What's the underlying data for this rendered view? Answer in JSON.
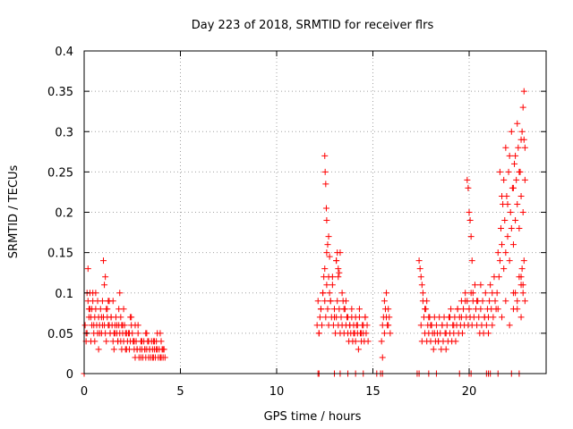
{
  "chart_data": {
    "type": "scatter",
    "title": "Day 223 of 2018, SRMTID for receiver flrs",
    "xlabel": "GPS time / hours",
    "ylabel": "SRMTID / TECUs",
    "xlim": [
      0,
      24
    ],
    "ylim": [
      0,
      0.4
    ],
    "x_ticks": [
      0,
      5,
      10,
      15,
      20
    ],
    "x_tick_labels": [
      "0",
      "5",
      "10",
      "15",
      "20"
    ],
    "y_ticks": [
      0,
      0.05,
      0.1,
      0.15,
      0.2,
      0.25,
      0.3,
      0.35,
      0.4
    ],
    "y_tick_labels": [
      "0",
      "0.05",
      "0.1",
      "0.15",
      "0.2",
      "0.25",
      "0.3",
      "0.35",
      "0.4"
    ],
    "grid": true,
    "marker": "+",
    "series": [
      {
        "name": "SRMTID",
        "color": "#ff0000",
        "x": [
          0.05,
          0.1,
          0.15,
          0.2,
          0.25,
          0.3,
          0.35,
          0.4,
          0.45,
          0.5,
          0.55,
          0.6,
          0.65,
          0.7,
          0.75,
          0.8,
          0.85,
          0.9,
          0.95,
          1.0,
          1.05,
          1.1,
          1.15,
          1.2,
          1.25,
          1.3,
          1.35,
          1.4,
          1.45,
          1.5,
          1.55,
          1.6,
          1.65,
          1.7,
          1.75,
          1.8,
          1.85,
          1.9,
          1.95,
          2.0,
          2.05,
          2.1,
          2.15,
          2.2,
          2.25,
          2.3,
          2.35,
          2.4,
          2.45,
          2.5,
          2.55,
          2.6,
          2.65,
          2.7,
          2.75,
          2.8,
          2.85,
          2.9,
          2.95,
          3.0,
          3.05,
          3.1,
          3.15,
          3.2,
          3.25,
          3.3,
          3.35,
          3.4,
          3.45,
          3.5,
          3.55,
          3.6,
          3.65,
          3.7,
          3.75,
          3.8,
          3.85,
          3.9,
          3.95,
          4.0,
          4.05,
          4.1,
          4.15,
          4.2,
          0.1,
          0.2,
          0.3,
          0.4,
          0.5,
          0.6,
          0.7,
          0.8,
          0.9,
          1.0,
          1.1,
          1.2,
          1.3,
          1.4,
          1.5,
          1.6,
          1.7,
          1.8,
          1.9,
          2.0,
          2.2,
          2.4,
          2.6,
          2.8,
          3.0,
          3.2,
          3.4,
          3.6,
          3.8,
          4.0,
          0.15,
          0.35,
          0.55,
          0.75,
          0.95,
          1.15,
          1.35,
          1.55,
          1.75,
          1.95,
          2.15,
          2.35,
          2.55,
          2.75,
          2.95,
          3.15,
          3.35,
          3.55,
          3.75,
          3.95,
          0.25,
          0.45,
          1.05,
          1.25,
          1.85,
          2.05,
          2.45,
          2.65,
          3.25,
          3.65,
          4.1,
          12.1,
          12.15,
          12.2,
          12.25,
          12.3,
          12.35,
          12.4,
          12.45,
          12.5,
          12.55,
          12.6,
          12.65,
          12.7,
          12.75,
          12.8,
          12.85,
          12.9,
          12.95,
          13.0,
          13.05,
          13.1,
          13.15,
          13.2,
          13.25,
          13.3,
          13.35,
          13.4,
          13.45,
          13.5,
          13.55,
          13.6,
          13.65,
          13.7,
          13.75,
          13.8,
          13.85,
          13.9,
          13.95,
          14.0,
          14.05,
          14.1,
          14.15,
          14.2,
          14.25,
          14.3,
          14.35,
          14.4,
          14.45,
          14.5,
          14.55,
          14.6,
          14.65,
          14.7,
          14.75,
          12.2,
          12.3,
          12.4,
          12.5,
          12.6,
          12.7,
          12.8,
          12.9,
          13.0,
          13.1,
          13.2,
          13.3,
          13.4,
          13.5,
          13.6,
          13.7,
          13.8,
          13.9,
          14.0,
          14.1,
          14.2,
          14.3,
          14.4,
          14.5,
          14.6,
          12.5,
          12.52,
          12.55,
          12.58,
          12.6,
          12.65,
          12.7,
          12.75,
          13.1,
          13.15,
          13.2,
          13.25,
          15.5,
          15.55,
          15.6,
          15.65,
          15.7,
          15.75,
          15.8,
          15.85,
          15.45,
          15.5,
          15.6,
          15.7,
          15.8,
          15.9,
          17.5,
          17.55,
          17.6,
          17.65,
          17.7,
          17.75,
          17.8,
          17.85,
          17.9,
          17.95,
          18.0,
          18.05,
          18.1,
          18.15,
          18.2,
          18.25,
          18.3,
          18.35,
          18.4,
          18.45,
          18.5,
          18.55,
          18.6,
          18.65,
          18.7,
          18.75,
          18.8,
          18.85,
          18.9,
          18.95,
          19.0,
          19.05,
          19.1,
          19.15,
          19.2,
          19.25,
          19.3,
          19.35,
          19.4,
          19.45,
          19.5,
          19.55,
          19.6,
          19.65,
          19.7,
          19.75,
          19.8,
          19.85,
          19.9,
          19.95,
          20.0,
          20.05,
          20.1,
          20.15,
          20.2,
          20.25,
          20.3,
          20.35,
          20.4,
          20.45,
          20.5,
          20.55,
          20.6,
          20.65,
          20.7,
          20.75,
          20.8,
          20.85,
          20.9,
          20.95,
          21.0,
          21.05,
          21.1,
          21.15,
          21.2,
          21.25,
          21.3,
          21.35,
          21.4,
          21.45,
          17.4,
          17.45,
          17.5,
          17.55,
          17.6,
          17.7,
          17.8,
          17.9,
          18.0,
          18.2,
          18.4,
          18.6,
          18.8,
          19.0,
          19.2,
          19.4,
          19.6,
          19.8,
          20.0,
          20.2,
          20.4,
          20.6,
          20.8,
          21.0,
          21.2,
          19.9,
          19.95,
          20.0,
          20.05,
          20.1,
          20.15,
          21.5,
          21.55,
          21.6,
          21.65,
          21.7,
          21.75,
          21.8,
          21.85,
          21.9,
          21.95,
          22.0,
          22.05,
          22.1,
          22.15,
          22.2,
          22.25,
          22.3,
          22.35,
          22.4,
          22.45,
          22.5,
          22.55,
          22.6,
          22.65,
          22.7,
          22.75,
          22.8,
          22.85,
          22.9,
          21.6,
          21.7,
          21.8,
          21.9,
          22.0,
          22.1,
          22.2,
          22.3,
          22.4,
          22.5,
          22.6,
          22.7,
          22.8,
          22.85,
          22.9,
          22.3,
          22.4,
          22.5,
          22.6,
          22.7,
          22.75,
          22.8,
          22.85,
          22.7,
          22.8,
          21.5,
          21.7,
          21.9,
          22.1,
          22.3,
          22.5,
          22.7,
          22.9,
          0.0,
          12.15,
          12.2,
          13.0,
          13.3,
          13.7,
          14.1,
          14.5,
          15.2,
          15.4,
          15.5,
          17.3,
          17.4,
          17.9,
          18.3,
          19.5,
          20.0,
          20.1,
          20.9,
          21.0,
          21.1,
          21.5,
          22.2,
          22.6
        ],
        "y": [
          0.06,
          0.05,
          0.1,
          0.09,
          0.07,
          0.08,
          0.04,
          0.06,
          0.09,
          0.05,
          0.07,
          0.08,
          0.06,
          0.05,
          0.07,
          0.06,
          0.08,
          0.05,
          0.09,
          0.07,
          0.06,
          0.05,
          0.08,
          0.07,
          0.06,
          0.09,
          0.05,
          0.07,
          0.06,
          0.04,
          0.05,
          0.06,
          0.07,
          0.05,
          0.04,
          0.06,
          0.05,
          0.04,
          0.03,
          0.05,
          0.04,
          0.06,
          0.05,
          0.03,
          0.04,
          0.05,
          0.03,
          0.04,
          0.06,
          0.05,
          0.04,
          0.03,
          0.02,
          0.04,
          0.03,
          0.05,
          0.02,
          0.03,
          0.04,
          0.03,
          0.02,
          0.04,
          0.03,
          0.02,
          0.03,
          0.04,
          0.02,
          0.03,
          0.02,
          0.04,
          0.03,
          0.02,
          0.03,
          0.02,
          0.04,
          0.03,
          0.02,
          0.03,
          0.05,
          0.02,
          0.03,
          0.02,
          0.03,
          0.02,
          0.04,
          0.13,
          0.1,
          0.08,
          0.06,
          0.1,
          0.09,
          0.05,
          0.07,
          0.14,
          0.12,
          0.08,
          0.06,
          0.07,
          0.09,
          0.05,
          0.06,
          0.08,
          0.07,
          0.06,
          0.05,
          0.07,
          0.04,
          0.06,
          0.04,
          0.05,
          0.03,
          0.04,
          0.05,
          0.04,
          0.05,
          0.07,
          0.04,
          0.03,
          0.06,
          0.04,
          0.05,
          0.03,
          0.04,
          0.06,
          0.03,
          0.05,
          0.04,
          0.03,
          0.02,
          0.03,
          0.04,
          0.02,
          0.03,
          0.02,
          0.08,
          0.1,
          0.11,
          0.09,
          0.1,
          0.08,
          0.07,
          0.06,
          0.05,
          0.04,
          0.03,
          0.06,
          0.09,
          0.05,
          0.07,
          0.08,
          0.06,
          0.1,
          0.12,
          0.09,
          0.07,
          0.11,
          0.08,
          0.06,
          0.1,
          0.09,
          0.07,
          0.12,
          0.06,
          0.08,
          0.05,
          0.07,
          0.09,
          0.06,
          0.08,
          0.05,
          0.07,
          0.06,
          0.09,
          0.05,
          0.08,
          0.06,
          0.07,
          0.05,
          0.04,
          0.06,
          0.05,
          0.07,
          0.04,
          0.06,
          0.05,
          0.04,
          0.06,
          0.05,
          0.03,
          0.07,
          0.05,
          0.04,
          0.06,
          0.05,
          0.04,
          0.07,
          0.05,
          0.06,
          0.04,
          0.05,
          0.08,
          0.1,
          0.13,
          0.15,
          0.12,
          0.09,
          0.11,
          0.07,
          0.14,
          0.12,
          0.15,
          0.1,
          0.08,
          0.09,
          0.07,
          0.06,
          0.08,
          0.05,
          0.07,
          0.06,
          0.08,
          0.05,
          0.06,
          0.07,
          0.27,
          0.25,
          0.235,
          0.205,
          0.19,
          0.16,
          0.17,
          0.145,
          0.14,
          0.15,
          0.13,
          0.125,
          0.06,
          0.07,
          0.05,
          0.08,
          0.07,
          0.06,
          0.08,
          0.07,
          0.04,
          0.02,
          0.09,
          0.1,
          0.06,
          0.05,
          0.06,
          0.04,
          0.09,
          0.07,
          0.05,
          0.08,
          0.04,
          0.06,
          0.05,
          0.07,
          0.04,
          0.06,
          0.05,
          0.03,
          0.07,
          0.04,
          0.06,
          0.05,
          0.04,
          0.07,
          0.05,
          0.03,
          0.06,
          0.04,
          0.07,
          0.05,
          0.03,
          0.06,
          0.04,
          0.07,
          0.05,
          0.08,
          0.04,
          0.06,
          0.05,
          0.07,
          0.04,
          0.06,
          0.08,
          0.05,
          0.07,
          0.06,
          0.09,
          0.05,
          0.08,
          0.06,
          0.1,
          0.07,
          0.09,
          0.06,
          0.08,
          0.07,
          0.1,
          0.06,
          0.09,
          0.07,
          0.11,
          0.08,
          0.06,
          0.09,
          0.07,
          0.05,
          0.08,
          0.06,
          0.09,
          0.05,
          0.07,
          0.1,
          0.06,
          0.08,
          0.07,
          0.09,
          0.11,
          0.08,
          0.1,
          0.07,
          0.12,
          0.09,
          0.08,
          0.1,
          0.14,
          0.13,
          0.12,
          0.11,
          0.1,
          0.08,
          0.09,
          0.07,
          0.06,
          0.05,
          0.04,
          0.06,
          0.05,
          0.07,
          0.06,
          0.08,
          0.07,
          0.09,
          0.08,
          0.1,
          0.09,
          0.11,
          0.07,
          0.05,
          0.06,
          0.24,
          0.23,
          0.2,
          0.19,
          0.17,
          0.14,
          0.15,
          0.12,
          0.14,
          0.18,
          0.16,
          0.21,
          0.13,
          0.19,
          0.15,
          0.22,
          0.17,
          0.25,
          0.14,
          0.2,
          0.18,
          0.23,
          0.16,
          0.26,
          0.19,
          0.24,
          0.21,
          0.28,
          0.18,
          0.25,
          0.22,
          0.3,
          0.2,
          0.29,
          0.24,
          0.25,
          0.22,
          0.24,
          0.28,
          0.21,
          0.27,
          0.3,
          0.23,
          0.27,
          0.31,
          0.25,
          0.29,
          0.33,
          0.35,
          0.28,
          0.08,
          0.1,
          0.09,
          0.12,
          0.11,
          0.13,
          0.1,
          0.14,
          0.12,
          0.11,
          0.08,
          0.07,
          0.09,
          0.06,
          0.1,
          0.08,
          0.07,
          0.09,
          0.0,
          0.0,
          0.0,
          0.0,
          0.0,
          0.0,
          0.0,
          0.0,
          0.0,
          0.0,
          0.0,
          0.0,
          0.0,
          0.0,
          0.0,
          0.0,
          0.0,
          0.0,
          0.0,
          0.0,
          0.0,
          0.0,
          0.0,
          0.0
        ]
      }
    ]
  }
}
